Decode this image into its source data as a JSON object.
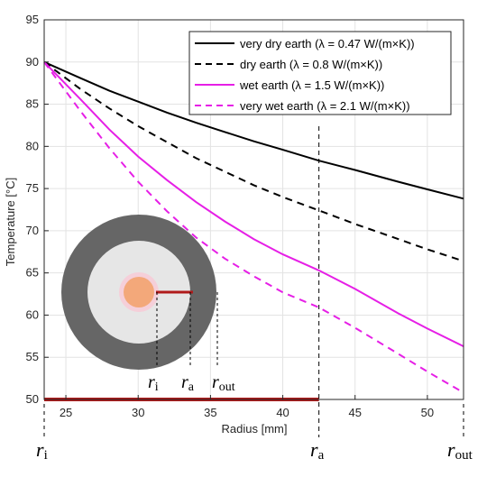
{
  "chart_data": {
    "type": "line",
    "title": "",
    "xlabel": "Radius [mm]",
    "ylabel": "Temperature [°C]",
    "xlim": [
      23.5,
      52.5
    ],
    "ylim": [
      50,
      95
    ],
    "xticks": [
      "25",
      "30",
      "35",
      "40",
      "45",
      "50"
    ],
    "yticks": [
      "50",
      "55",
      "60",
      "65",
      "70",
      "75",
      "80",
      "85",
      "90",
      "95"
    ],
    "grid": true,
    "legend_position": "top-right",
    "series": [
      {
        "name": "very dry earth (λ = 0.47 W/(m×K))",
        "color": "#000000",
        "dash": false,
        "x": [
          23.5,
          26,
          28,
          30,
          32,
          34,
          36,
          38,
          40,
          42.5,
          45,
          48,
          50,
          52.5
        ],
        "y": [
          90,
          88.1,
          86.6,
          85.3,
          84.0,
          82.8,
          81.7,
          80.6,
          79.6,
          78.3,
          77.2,
          75.8,
          74.9,
          73.8
        ]
      },
      {
        "name": "dry earth (λ = 0.8 W/(m×K))",
        "color": "#000000",
        "dash": true,
        "x": [
          23.5,
          26,
          28,
          30,
          32,
          34,
          36,
          38,
          40,
          42.5,
          45,
          48,
          50,
          52.5
        ],
        "y": [
          90,
          86.8,
          84.5,
          82.4,
          80.5,
          78.6,
          77.0,
          75.4,
          74.0,
          72.4,
          70.8,
          69.0,
          67.8,
          66.4
        ]
      },
      {
        "name": "wet earth (λ = 1.5 W/(m×K))",
        "color": "#e61fe6",
        "dash": false,
        "x": [
          23.5,
          26,
          28,
          30,
          32,
          34,
          36,
          38,
          40,
          42.5,
          45,
          48,
          50,
          52.5
        ],
        "y": [
          90,
          85.6,
          82.0,
          78.8,
          76.0,
          73.4,
          71.1,
          69.0,
          67.2,
          65.3,
          63.1,
          60.2,
          58.4,
          56.3
        ]
      },
      {
        "name": "very wet earth (λ = 2.1 W/(m×K))",
        "color": "#e61fe6",
        "dash": true,
        "x": [
          23.5,
          26,
          28,
          30,
          32,
          34,
          36,
          38,
          40,
          42.5,
          45,
          48,
          50,
          52.5
        ],
        "y": [
          90,
          84.2,
          79.8,
          75.8,
          72.3,
          69.2,
          66.7,
          64.6,
          62.7,
          60.9,
          58.5,
          55.4,
          53.3,
          50.8
        ]
      }
    ],
    "reference_lines": {
      "r_a_x": 42.5,
      "r_i_x": 23.5,
      "r_out_x": 52.5
    },
    "ground_bar": {
      "x_start": 23.5,
      "x_end": 42.5,
      "y": 50,
      "color": "#b01a1a"
    },
    "markers": {
      "r_i": "r",
      "r_i_sub": "i",
      "r_a": "r",
      "r_a_sub": "a",
      "r_out": "r",
      "r_out_sub": "out"
    },
    "inset": {
      "outer_ring_color": "#666666",
      "soil_color": "#e6e6e6",
      "cable_color": "#f3a87a",
      "radius_line_color": "#b01a1a"
    }
  }
}
